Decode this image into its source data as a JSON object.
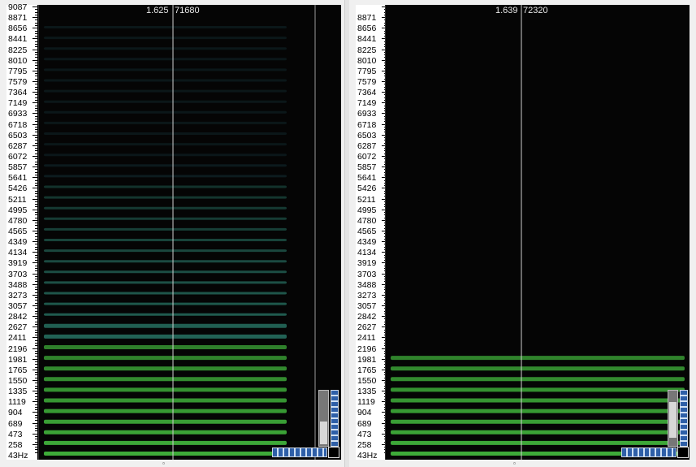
{
  "axis_labels": [
    "9087",
    "8871",
    "8656",
    "8441",
    "8225",
    "8010",
    "7795",
    "7579",
    "7364",
    "7149",
    "6933",
    "6718",
    "6503",
    "6287",
    "6072",
    "5857",
    "5641",
    "5426",
    "5211",
    "4995",
    "4780",
    "4565",
    "4349",
    "4134",
    "3919",
    "3703",
    "3488",
    "3273",
    "3057",
    "2842",
    "2627",
    "2411",
    "2196",
    "1981",
    "1765",
    "1550",
    "1335",
    "1119",
    "904",
    "689",
    "473",
    "258",
    "43Hz"
  ],
  "left_panel": {
    "cursor_time": "1.625",
    "cursor_sample": "71680",
    "top_label_visible": "9087"
  },
  "right_panel": {
    "cursor_time": "1.639",
    "cursor_sample": "72320",
    "top_label_visible": "8871"
  },
  "colors": {
    "background": "#050505",
    "harmonic_low": "#3fae3a",
    "harmonic_mid": "#2f8a78",
    "harmonic_high": "#1f4f58",
    "cursor": "#cfcfcf"
  }
}
